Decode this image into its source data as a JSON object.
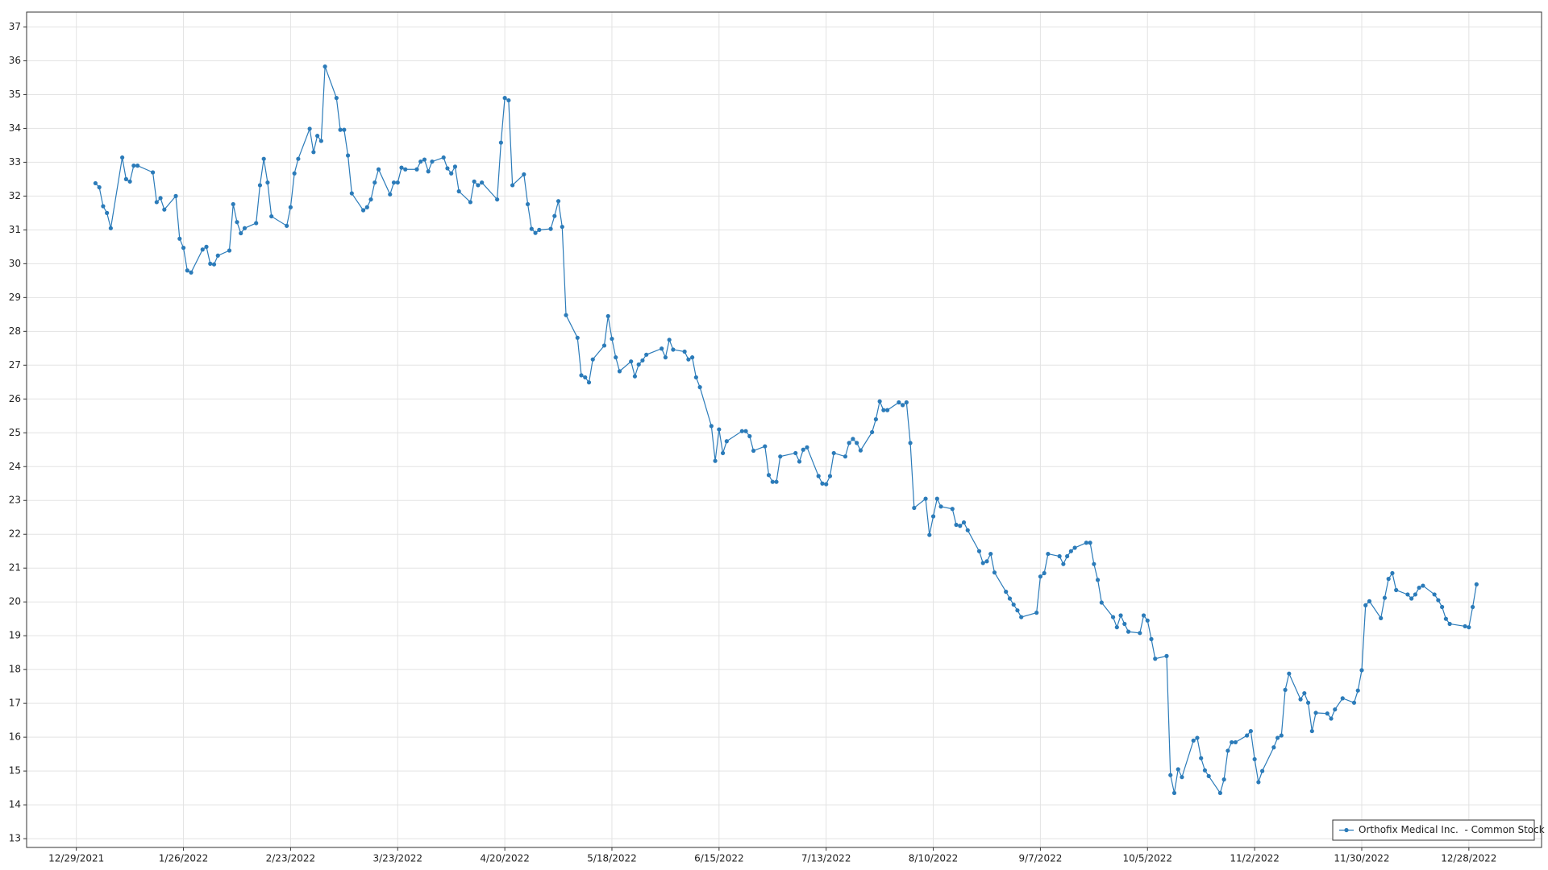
{
  "chart_data": {
    "type": "line",
    "x": [
      "2022-01-03",
      "2022-01-04",
      "2022-01-05",
      "2022-01-06",
      "2022-01-07",
      "2022-01-10",
      "2022-01-11",
      "2022-01-12",
      "2022-01-13",
      "2022-01-14",
      "2022-01-18",
      "2022-01-19",
      "2022-01-20",
      "2022-01-21",
      "2022-01-24",
      "2022-01-25",
      "2022-01-26",
      "2022-01-27",
      "2022-01-28",
      "2022-01-31",
      "2022-02-01",
      "2022-02-02",
      "2022-02-03",
      "2022-02-04",
      "2022-02-07",
      "2022-02-08",
      "2022-02-09",
      "2022-02-10",
      "2022-02-11",
      "2022-02-14",
      "2022-02-15",
      "2022-02-16",
      "2022-02-17",
      "2022-02-18",
      "2022-02-22",
      "2022-02-23",
      "2022-02-24",
      "2022-02-25",
      "2022-02-28",
      "2022-03-01",
      "2022-03-02",
      "2022-03-03",
      "2022-03-04",
      "2022-03-07",
      "2022-03-08",
      "2022-03-09",
      "2022-03-10",
      "2022-03-11",
      "2022-03-14",
      "2022-03-15",
      "2022-03-16",
      "2022-03-17",
      "2022-03-18",
      "2022-03-21",
      "2022-03-22",
      "2022-03-23",
      "2022-03-24",
      "2022-03-25",
      "2022-03-28",
      "2022-03-29",
      "2022-03-30",
      "2022-03-31",
      "2022-04-01",
      "2022-04-04",
      "2022-04-05",
      "2022-04-06",
      "2022-04-07",
      "2022-04-08",
      "2022-04-11",
      "2022-04-12",
      "2022-04-13",
      "2022-04-14",
      "2022-04-18",
      "2022-04-19",
      "2022-04-20",
      "2022-04-21",
      "2022-04-22",
      "2022-04-25",
      "2022-04-26",
      "2022-04-27",
      "2022-04-28",
      "2022-04-29",
      "2022-05-02",
      "2022-05-03",
      "2022-05-04",
      "2022-05-05",
      "2022-05-06",
      "2022-05-09",
      "2022-05-10",
      "2022-05-11",
      "2022-05-12",
      "2022-05-13",
      "2022-05-16",
      "2022-05-17",
      "2022-05-18",
      "2022-05-19",
      "2022-05-20",
      "2022-05-23",
      "2022-05-24",
      "2022-05-25",
      "2022-05-26",
      "2022-05-27",
      "2022-05-31",
      "2022-06-01",
      "2022-06-02",
      "2022-06-03",
      "2022-06-06",
      "2022-06-07",
      "2022-06-08",
      "2022-06-09",
      "2022-06-10",
      "2022-06-13",
      "2022-06-14",
      "2022-06-15",
      "2022-06-16",
      "2022-06-17",
      "2022-06-21",
      "2022-06-22",
      "2022-06-23",
      "2022-06-24",
      "2022-06-27",
      "2022-06-28",
      "2022-06-29",
      "2022-06-30",
      "2022-07-01",
      "2022-07-05",
      "2022-07-06",
      "2022-07-07",
      "2022-07-08",
      "2022-07-11",
      "2022-07-12",
      "2022-07-13",
      "2022-07-14",
      "2022-07-15",
      "2022-07-18",
      "2022-07-19",
      "2022-07-20",
      "2022-07-21",
      "2022-07-22",
      "2022-07-25",
      "2022-07-26",
      "2022-07-27",
      "2022-07-28",
      "2022-07-29",
      "2022-08-01",
      "2022-08-02",
      "2022-08-03",
      "2022-08-04",
      "2022-08-05",
      "2022-08-08",
      "2022-08-09",
      "2022-08-10",
      "2022-08-11",
      "2022-08-12",
      "2022-08-15",
      "2022-08-16",
      "2022-08-17",
      "2022-08-18",
      "2022-08-19",
      "2022-08-22",
      "2022-08-23",
      "2022-08-24",
      "2022-08-25",
      "2022-08-26",
      "2022-08-29",
      "2022-08-30",
      "2022-08-31",
      "2022-09-01",
      "2022-09-02",
      "2022-09-06",
      "2022-09-07",
      "2022-09-08",
      "2022-09-09",
      "2022-09-12",
      "2022-09-13",
      "2022-09-14",
      "2022-09-15",
      "2022-09-16",
      "2022-09-19",
      "2022-09-20",
      "2022-09-21",
      "2022-09-22",
      "2022-09-23",
      "2022-09-26",
      "2022-09-27",
      "2022-09-28",
      "2022-09-29",
      "2022-09-30",
      "2022-10-03",
      "2022-10-04",
      "2022-10-05",
      "2022-10-06",
      "2022-10-07",
      "2022-10-10",
      "2022-10-11",
      "2022-10-12",
      "2022-10-13",
      "2022-10-14",
      "2022-10-17",
      "2022-10-18",
      "2022-10-19",
      "2022-10-20",
      "2022-10-21",
      "2022-10-24",
      "2022-10-25",
      "2022-10-26",
      "2022-10-27",
      "2022-10-28",
      "2022-10-31",
      "2022-11-01",
      "2022-11-02",
      "2022-11-03",
      "2022-11-04",
      "2022-11-07",
      "2022-11-08",
      "2022-11-09",
      "2022-11-10",
      "2022-11-11",
      "2022-11-14",
      "2022-11-15",
      "2022-11-16",
      "2022-11-17",
      "2022-11-18",
      "2022-11-21",
      "2022-11-22",
      "2022-11-23",
      "2022-11-25",
      "2022-11-28",
      "2022-11-29",
      "2022-11-30",
      "2022-12-01",
      "2022-12-02",
      "2022-12-05",
      "2022-12-06",
      "2022-12-07",
      "2022-12-08",
      "2022-12-09",
      "2022-12-12",
      "2022-12-13",
      "2022-12-14",
      "2022-12-15",
      "2022-12-16",
      "2022-12-19",
      "2022-12-20",
      "2022-12-21",
      "2022-12-22",
      "2022-12-23",
      "2022-12-27",
      "2022-12-28",
      "2022-12-29",
      "2022-12-30"
    ],
    "series": [
      {
        "name": "Orthofix Medical Inc.  - Common Stock",
        "color": "#2b7bb9",
        "values": [
          32.38,
          32.26,
          31.7,
          31.5,
          31.05,
          33.14,
          32.5,
          32.43,
          32.9,
          32.9,
          32.7,
          31.82,
          31.94,
          31.6,
          32.0,
          30.74,
          30.47,
          29.8,
          29.74,
          30.42,
          30.5,
          30.0,
          29.98,
          30.24,
          30.39,
          31.76,
          31.23,
          30.9,
          31.05,
          31.2,
          32.32,
          33.1,
          32.4,
          31.4,
          31.12,
          31.67,
          32.67,
          33.1,
          33.99,
          33.3,
          33.78,
          33.63,
          35.83,
          34.9,
          33.96,
          33.96,
          33.2,
          32.08,
          31.58,
          31.67,
          31.9,
          32.4,
          32.79,
          32.05,
          32.4,
          32.4,
          32.84,
          32.79,
          32.79,
          33.02,
          33.08,
          32.73,
          33.02,
          33.14,
          32.82,
          32.67,
          32.87,
          32.14,
          31.82,
          32.43,
          32.32,
          32.4,
          31.9,
          33.58,
          34.9,
          34.83,
          32.32,
          32.64,
          31.76,
          31.03,
          30.91,
          31.0,
          31.03,
          31.41,
          31.85,
          31.09,
          28.48,
          27.81,
          26.7,
          26.64,
          26.49,
          27.17,
          27.58,
          28.45,
          27.78,
          27.23,
          26.82,
          27.11,
          26.67,
          27.02,
          27.14,
          27.31,
          27.49,
          27.23,
          27.75,
          27.46,
          27.4,
          27.17,
          27.23,
          26.64,
          26.35,
          25.2,
          24.17,
          25.1,
          24.4,
          24.75,
          25.05,
          25.05,
          24.9,
          24.47,
          24.6,
          23.75,
          23.55,
          23.55,
          24.3,
          24.4,
          24.15,
          24.5,
          24.57,
          23.72,
          23.5,
          23.48,
          23.72,
          24.4,
          24.3,
          24.7,
          24.82,
          24.7,
          24.48,
          25.02,
          25.4,
          25.93,
          25.67,
          25.67,
          25.9,
          25.82,
          25.9,
          24.7,
          22.78,
          23.05,
          21.98,
          22.53,
          23.05,
          22.82,
          22.75,
          22.28,
          22.25,
          22.35,
          22.12,
          21.5,
          21.15,
          21.2,
          21.42,
          20.87,
          20.3,
          20.1,
          19.92,
          19.75,
          19.55,
          19.68,
          20.75,
          20.85,
          21.42,
          21.35,
          21.12,
          21.35,
          21.5,
          21.6,
          21.75,
          21.75,
          21.12,
          20.65,
          19.98,
          19.55,
          19.25,
          19.6,
          19.35,
          19.12,
          19.08,
          19.6,
          19.45,
          18.9,
          18.32,
          18.4,
          14.88,
          14.35,
          15.05,
          14.82,
          15.9,
          15.98,
          15.38,
          15.02,
          14.85,
          14.35,
          14.75,
          15.6,
          15.85,
          15.85,
          16.05,
          16.18,
          15.35,
          14.67,
          15.0,
          15.7,
          15.98,
          16.05,
          17.4,
          17.88,
          17.12,
          17.3,
          17.02,
          16.18,
          16.72,
          16.7,
          16.55,
          16.82,
          17.15,
          17.02,
          17.38,
          17.98,
          19.9,
          20.02,
          19.52,
          20.12,
          20.68,
          20.85,
          20.35,
          20.22,
          20.1,
          20.22,
          20.42,
          20.48,
          20.22,
          20.05,
          19.85,
          19.5,
          19.35,
          19.28,
          19.25,
          19.85,
          20.52
        ]
      }
    ],
    "xlim": [
      "2021-12-16",
      "2023-01-16"
    ],
    "xticks": [
      {
        "value": "2021-12-29",
        "label": "12/29/2021"
      },
      {
        "value": "2022-01-26",
        "label": "1/26/2022"
      },
      {
        "value": "2022-02-23",
        "label": "2/23/2022"
      },
      {
        "value": "2022-03-23",
        "label": "3/23/2022"
      },
      {
        "value": "2022-04-20",
        "label": "4/20/2022"
      },
      {
        "value": "2022-05-18",
        "label": "5/18/2022"
      },
      {
        "value": "2022-06-15",
        "label": "6/15/2022"
      },
      {
        "value": "2022-07-13",
        "label": "7/13/2022"
      },
      {
        "value": "2022-08-10",
        "label": "8/10/2022"
      },
      {
        "value": "2022-09-07",
        "label": "9/7/2022"
      },
      {
        "value": "2022-10-05",
        "label": "10/5/2022"
      },
      {
        "value": "2022-11-02",
        "label": "11/2/2022"
      },
      {
        "value": "2022-11-30",
        "label": "11/30/2022"
      },
      {
        "value": "2022-12-28",
        "label": "12/28/2022"
      }
    ],
    "ylim": [
      12.74,
      37.44
    ],
    "yticks": [
      13,
      14,
      15,
      16,
      17,
      18,
      19,
      20,
      21,
      22,
      23,
      24,
      25,
      26,
      27,
      28,
      29,
      30,
      31,
      32,
      33,
      34,
      35,
      36,
      37
    ],
    "grid": true,
    "legend": "lower right",
    "markers": true
  }
}
